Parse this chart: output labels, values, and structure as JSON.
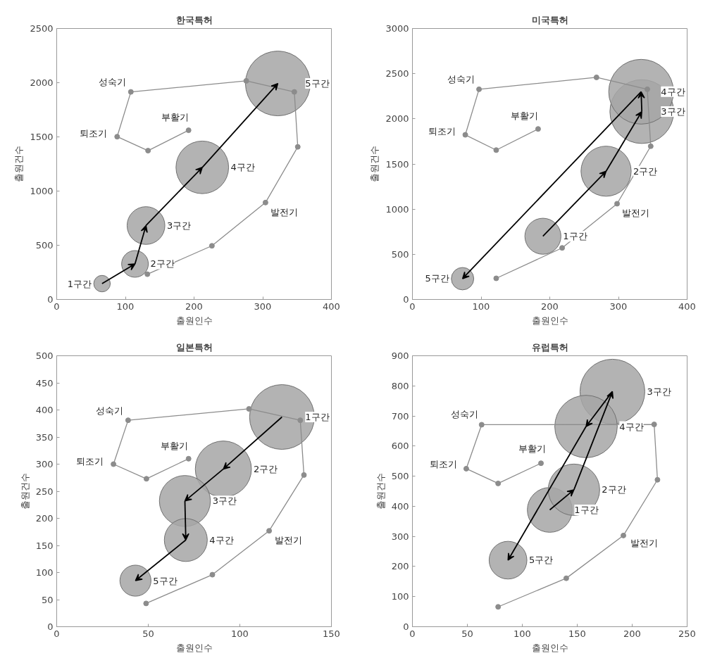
{
  "chart_data": [
    {
      "type": "bubble",
      "title": "한국특허",
      "xlabel": "출원인수",
      "ylabel": "출원건수",
      "xlim": [
        0,
        400
      ],
      "ylim": [
        0,
        2500
      ],
      "xticks": [
        0,
        100,
        200,
        300,
        400
      ],
      "yticks": [
        0,
        500,
        1000,
        1500,
        2000,
        2500
      ],
      "series": [
        {
          "type": "line",
          "color": "#8c8c8c",
          "marker": "circle",
          "x": [
            132,
            226,
            304,
            351,
            346,
            276,
            108,
            88,
            133,
            192
          ],
          "values": [
            233,
            495,
            894,
            1408,
            1915,
            2017,
            1915,
            1502,
            1373,
            1561
          ]
        },
        {
          "type": "bubble",
          "color": "#a6a6a6",
          "x": [
            66,
            114,
            130,
            212,
            322
          ],
          "values": [
            146,
            328,
            682,
            1219,
            1993
          ],
          "sizes": [
            0.065,
            0.17,
            0.34,
            0.66,
            1
          ]
        }
      ],
      "annotations": [
        {
          "text": "1구간",
          "x": 66,
          "y": 146
        },
        "2구간",
        "3구간",
        "4구간",
        "5구간",
        {
          "text": "성숙기",
          "x": 108,
          "y": 1915
        },
        {
          "text": "퇴조기",
          "x": 88,
          "y": 1502
        },
        {
          "text": "부활기",
          "x": 192,
          "y": 1561
        },
        {
          "text": "발전기",
          "x": 304,
          "y": 894
        }
      ]
    },
    {
      "type": "bubble",
      "title": "미국특허",
      "xlabel": "출원인수",
      "ylabel": "출원건수",
      "xlim": [
        0,
        400
      ],
      "ylim": [
        0,
        3000
      ],
      "xticks": [
        0,
        100,
        200,
        300,
        400
      ],
      "yticks": [
        0,
        500,
        1000,
        1500,
        2000,
        2500,
        3000
      ],
      "series": [
        {
          "type": "line",
          "color": "#8c8c8c",
          "marker": "circle",
          "x": [
            122,
            218,
            298,
            347,
            342,
            268,
            97,
            77,
            122,
            183
          ],
          "values": [
            234,
            571,
            1060,
            1697,
            2327,
            2459,
            2327,
            1823,
            1654,
            1888
          ]
        },
        {
          "type": "bubble",
          "color": "#a6a6a6",
          "x": [
            190,
            282,
            334,
            333,
            73
          ],
          "values": [
            700,
            1420,
            2080,
            2300,
            230
          ],
          "sizes": [
            0.31,
            0.6,
            0.97,
            1,
            0.12
          ]
        }
      ],
      "annotations": [
        "1구간",
        "2구간",
        "3구간",
        "4구간",
        "5구간",
        {
          "text": "성숙기",
          "x": 97,
          "y": 2327
        },
        {
          "text": "퇴조기",
          "x": 77,
          "y": 1823
        },
        {
          "text": "부활기",
          "x": 183,
          "y": 1888
        },
        {
          "text": "발전기",
          "x": 298,
          "y": 1060
        }
      ]
    },
    {
      "type": "bubble",
      "title": "일본특허",
      "xlabel": "출원인수",
      "ylabel": "출원건수",
      "xlim": [
        0,
        150
      ],
      "ylim": [
        0,
        500
      ],
      "xticks": [
        0,
        50,
        100,
        150
      ],
      "yticks": [
        0,
        50,
        100,
        150,
        200,
        250,
        300,
        350,
        400,
        450,
        500
      ],
      "series": [
        {
          "type": "line",
          "color": "#8c8c8c",
          "marker": "circle",
          "x": [
            48.8,
            85,
            116,
            135,
            133,
            105,
            39,
            31,
            49,
            72
          ],
          "values": [
            43,
            96,
            177,
            280,
            381,
            402,
            381,
            300,
            273,
            310
          ]
        },
        {
          "type": "bubble",
          "color": "#a6a6a6",
          "x": [
            123,
            91,
            70,
            70.5,
            43
          ],
          "values": [
            387,
            291,
            232,
            160,
            85
          ],
          "sizes": [
            1,
            0.75,
            0.62,
            0.44,
            0.23
          ]
        }
      ],
      "annotations": [
        "1구간",
        "2구간",
        "3구간",
        "4구간",
        "5구간",
        {
          "text": "성숙기",
          "x": 39,
          "y": 381
        },
        {
          "text": "퇴조기",
          "x": 31,
          "y": 300
        },
        {
          "text": "부활기",
          "x": 72,
          "y": 310
        },
        {
          "text": "발전기",
          "x": 116,
          "y": 177
        }
      ]
    },
    {
      "type": "bubble",
      "title": "유럽특허",
      "xlabel": "출원인수",
      "ylabel": "출원건수",
      "xlim": [
        0,
        250
      ],
      "ylim": [
        0,
        900
      ],
      "xticks": [
        0,
        50,
        100,
        150,
        200,
        250
      ],
      "yticks": [
        0,
        100,
        200,
        300,
        400,
        500,
        600,
        700,
        800,
        900
      ],
      "series": [
        {
          "type": "line",
          "color": "#8c8c8c",
          "marker": "circle",
          "x": [
            78,
            140,
            192,
            223,
            220,
            63,
            49,
            78,
            117
          ],
          "values": [
            66,
            161,
            303,
            488,
            672,
            671,
            525,
            476,
            543
          ]
        },
        {
          "type": "bubble",
          "color": "#a6a6a6",
          "x": [
            125,
            147,
            182,
            158,
            87
          ],
          "values": [
            388,
            455,
            781,
            665,
            221
          ],
          "sizes": [
            0.48,
            0.63,
            1,
            0.93,
            0.34
          ]
        }
      ],
      "annotations": [
        "1구간",
        "2구간",
        "3구간",
        "4구간",
        "5구간",
        {
          "text": "성숙기",
          "x": 63,
          "y": 671
        },
        {
          "text": "퇴조기",
          "x": 49,
          "y": 525
        },
        {
          "text": "부활기",
          "x": 117,
          "y": 543
        },
        {
          "text": "발전기",
          "x": 192,
          "y": 303
        }
      ]
    }
  ]
}
